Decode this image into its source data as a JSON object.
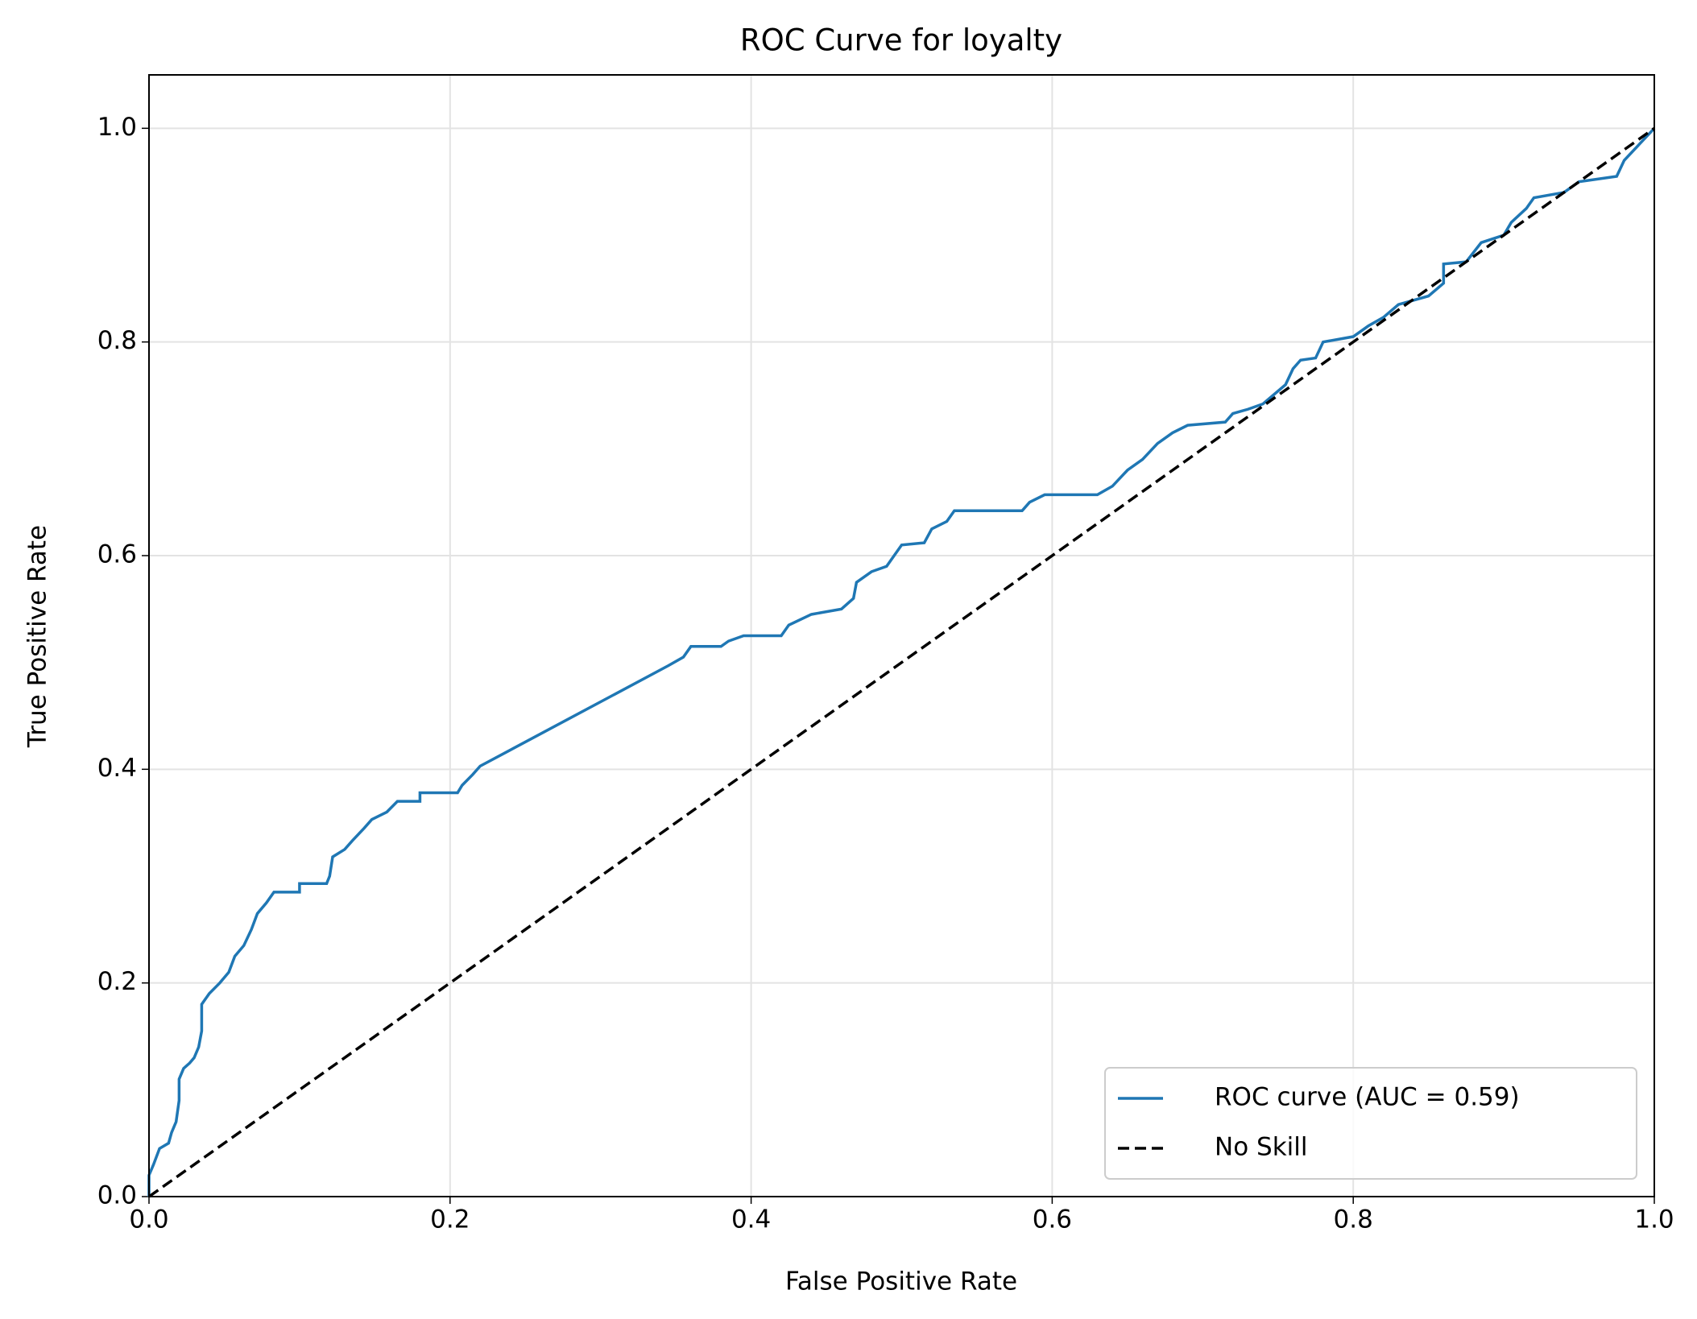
{
  "chart_data": {
    "type": "line",
    "title": "ROC Curve for loyalty",
    "xlabel": "False Positive Rate",
    "ylabel": "True Positive Rate",
    "xlim": [
      0,
      1
    ],
    "ylim": [
      0,
      1.05
    ],
    "xticks": [
      {
        "value": 0,
        "label": "0.0"
      },
      0.2,
      0.4,
      0.6,
      0.8,
      {
        "value": 1,
        "label": "1.0"
      }
    ],
    "yticks": [
      {
        "value": 0,
        "label": "0.0"
      },
      0.2,
      0.4,
      0.6,
      0.8,
      {
        "value": 1,
        "label": "1.0"
      }
    ],
    "grid": true,
    "legend": "lower right",
    "series": [
      {
        "name": "ROC curve (AUC = 0.59)",
        "color": "#1f77b4",
        "linestyle": "solid",
        "x": [
          0,
          0,
          0.003,
          0.007,
          0.013,
          0.015,
          0.018,
          0.02,
          0.02,
          0.023,
          0.027,
          0.03,
          0.033,
          0.035,
          0.035,
          0.04,
          0.047,
          0.053,
          0.057,
          0.063,
          0.068,
          0.072,
          0.078,
          0.083,
          0.1,
          0.1,
          0.118,
          0.12,
          0.122,
          0.13,
          0.135,
          0.143,
          0.148,
          0.158,
          0.165,
          0.18,
          0.18,
          0.205,
          0.208,
          0.215,
          0.22,
          0.345,
          0.355,
          0.36,
          0.38,
          0.385,
          0.395,
          0.42,
          0.425,
          0.44,
          0.46,
          0.468,
          0.47,
          0.48,
          0.49,
          0.495,
          0.5,
          0.515,
          0.52,
          0.53,
          0.535,
          0.58,
          0.585,
          0.595,
          0.63,
          0.64,
          0.65,
          0.66,
          0.67,
          0.68,
          0.69,
          0.715,
          0.72,
          0.73,
          0.74,
          0.755,
          0.76,
          0.765,
          0.775,
          0.78,
          0.8,
          0.81,
          0.82,
          0.83,
          0.85,
          0.86,
          0.86,
          0.875,
          0.885,
          0.9,
          0.905,
          0.915,
          0.92,
          0.94,
          0.95,
          0.975,
          0.98,
          0.99,
          1.0
        ],
        "values": [
          0,
          0.02,
          0.03,
          0.045,
          0.05,
          0.06,
          0.07,
          0.09,
          0.11,
          0.12,
          0.125,
          0.13,
          0.14,
          0.155,
          0.18,
          0.19,
          0.2,
          0.21,
          0.225,
          0.235,
          0.25,
          0.265,
          0.275,
          0.285,
          0.285,
          0.293,
          0.293,
          0.3,
          0.318,
          0.325,
          0.333,
          0.345,
          0.353,
          0.36,
          0.37,
          0.37,
          0.378,
          0.378,
          0.385,
          0.395,
          0.403,
          0.497,
          0.505,
          0.515,
          0.515,
          0.52,
          0.525,
          0.525,
          0.535,
          0.545,
          0.55,
          0.56,
          0.575,
          0.585,
          0.59,
          0.6,
          0.61,
          0.612,
          0.625,
          0.632,
          0.642,
          0.642,
          0.65,
          0.657,
          0.657,
          0.665,
          0.68,
          0.69,
          0.705,
          0.715,
          0.722,
          0.725,
          0.733,
          0.737,
          0.742,
          0.76,
          0.775,
          0.783,
          0.785,
          0.8,
          0.805,
          0.815,
          0.823,
          0.835,
          0.843,
          0.855,
          0.873,
          0.875,
          0.893,
          0.9,
          0.912,
          0.925,
          0.935,
          0.94,
          0.95,
          0.955,
          0.97,
          0.985,
          1.0
        ]
      },
      {
        "name": "No Skill",
        "color": "#000000",
        "linestyle": "dashed",
        "x": [
          0,
          1
        ],
        "values": [
          0,
          1
        ]
      }
    ]
  }
}
